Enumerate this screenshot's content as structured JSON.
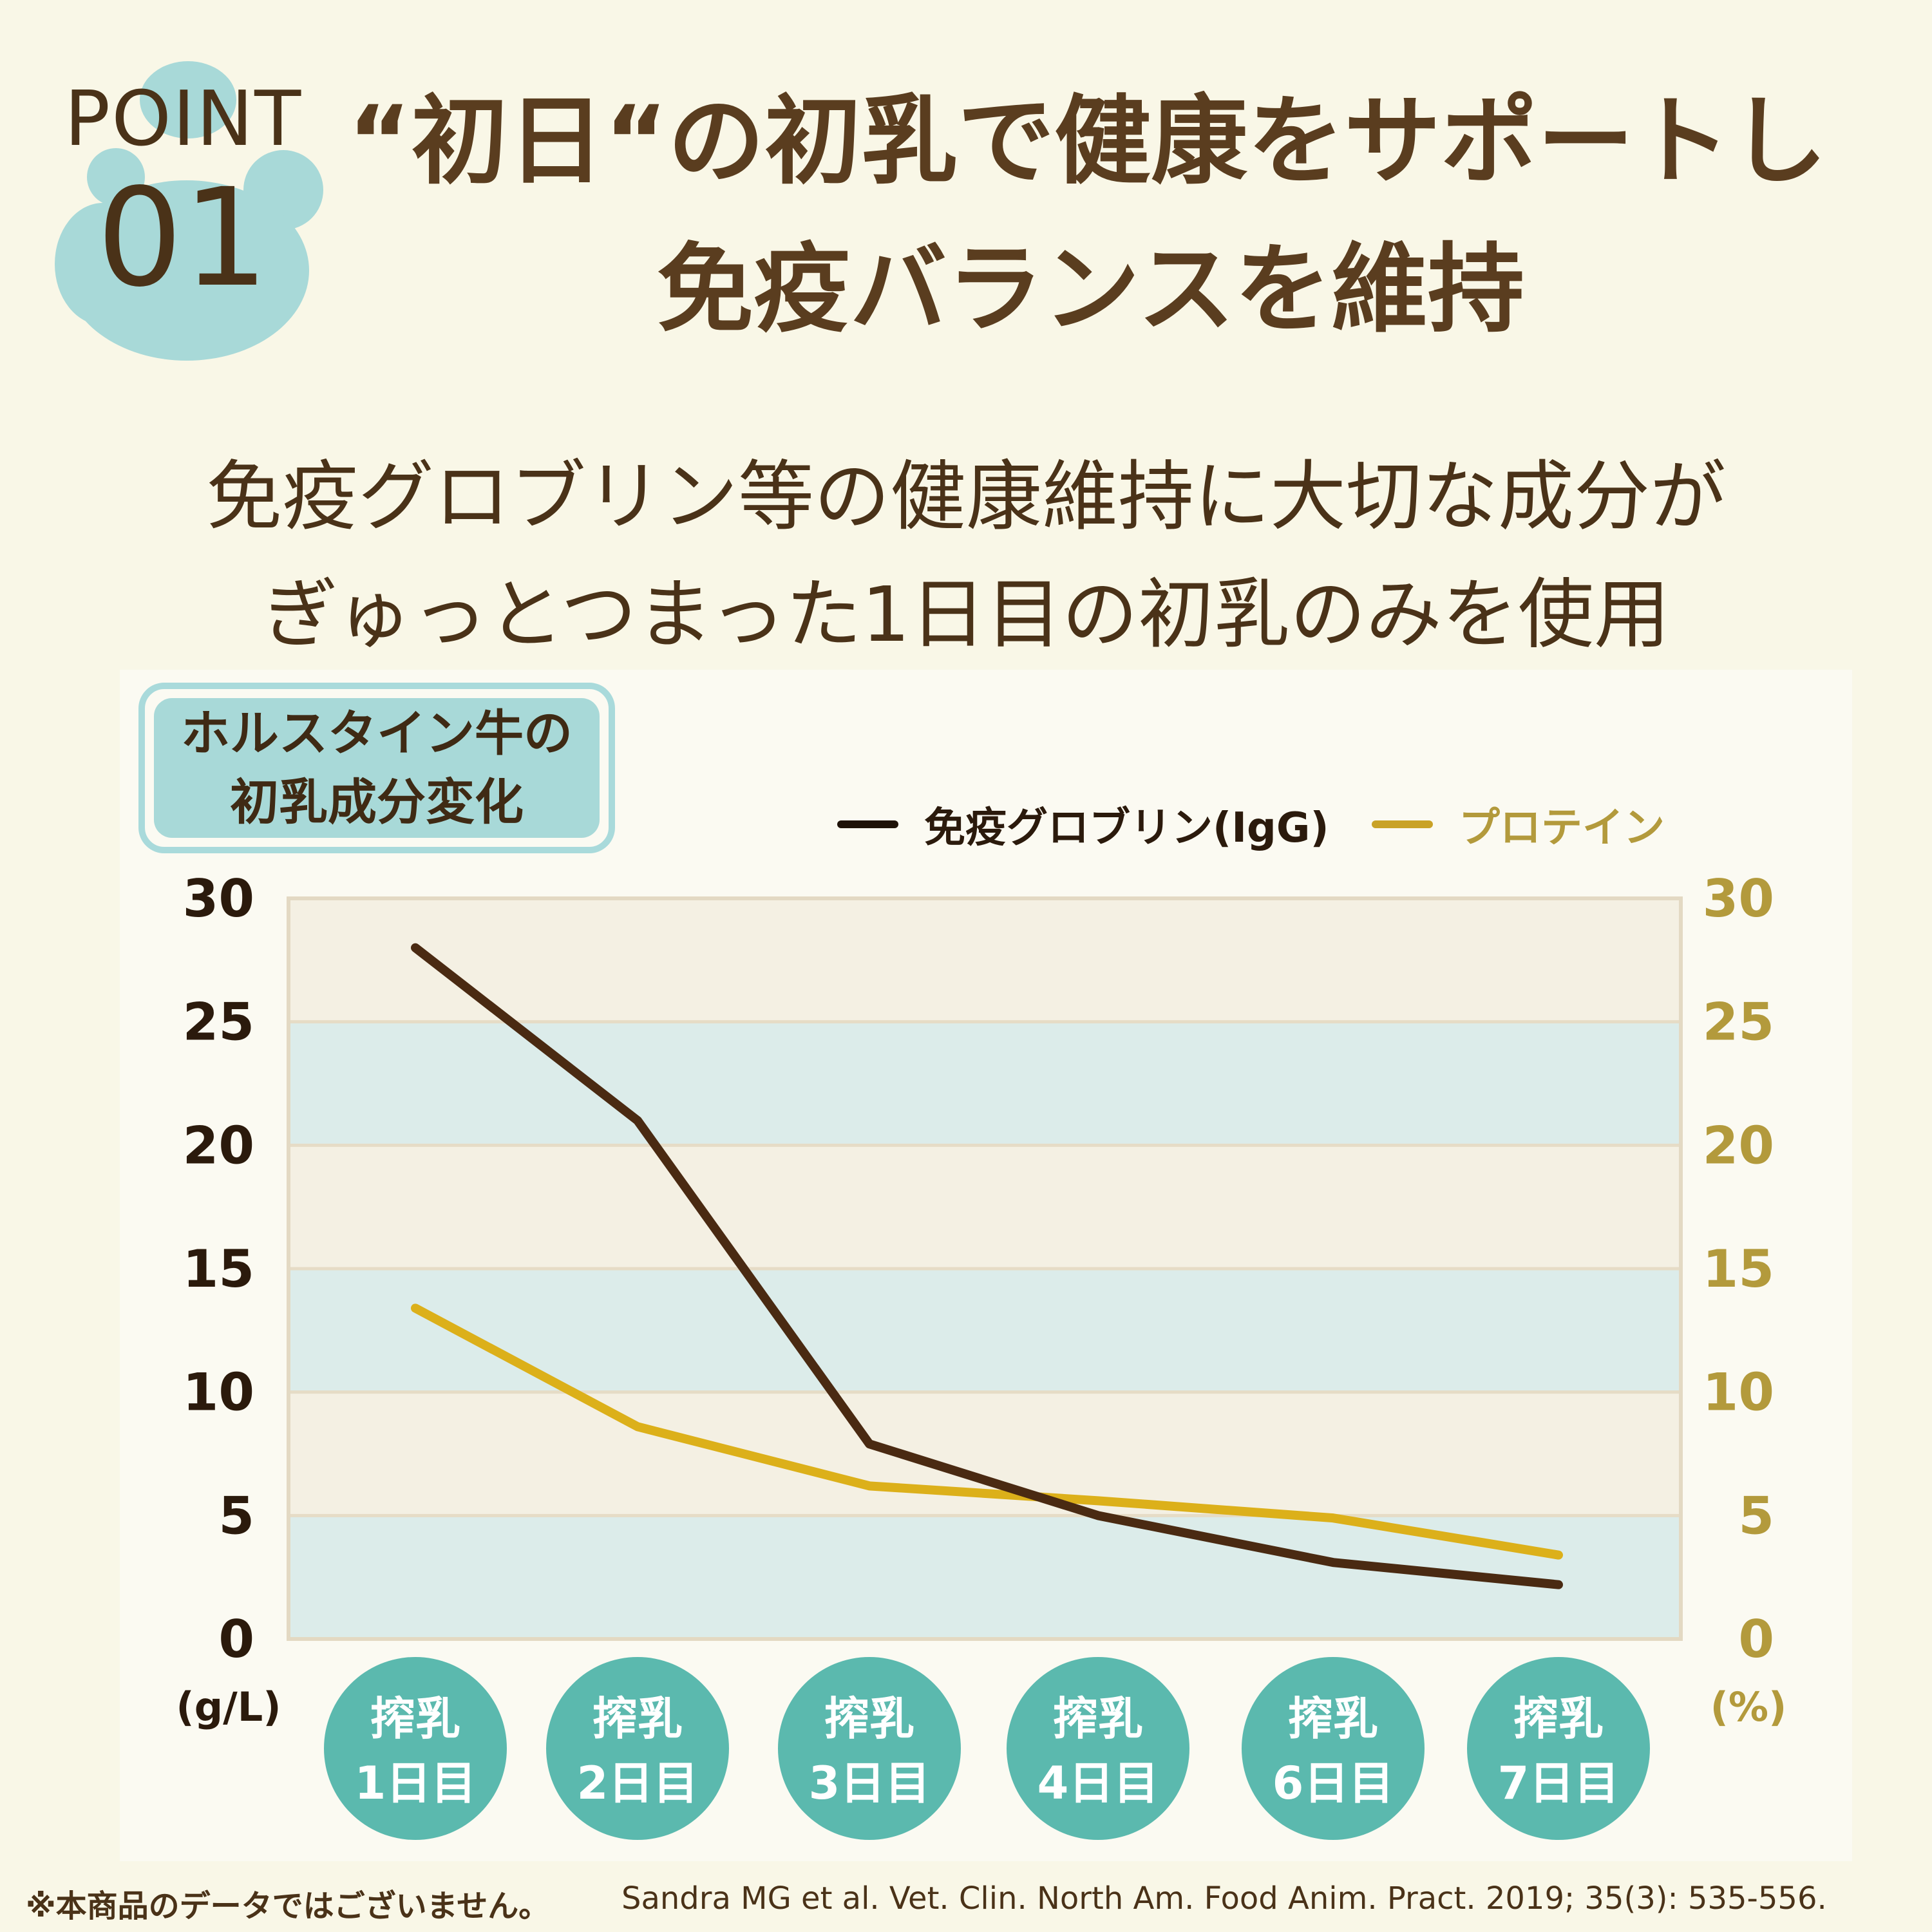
{
  "header": {
    "point_word": "POINT",
    "point_number": "01",
    "headline_line1": "“初日“の初乳で健康をサポートし",
    "headline_line2": "免疫バランスを維持"
  },
  "subtitle": {
    "line1": "免疫グロブリン等の健康維持に大切な成分が",
    "line2": "ぎゅっとつまった1日目の初乳のみを使用"
  },
  "badge": {
    "line1": "ホルスタイン牛の",
    "line2": "初乳成分変化"
  },
  "colors": {
    "background": "#f9f7e7",
    "igg_line": "#4a2a12",
    "protein_line": "#dcb01a",
    "right_axis": "#b39a3c",
    "band_blue": "#dcecea",
    "band_cream": "#f4f0e3",
    "day_circle": "#5bb9ae"
  },
  "chart_data": {
    "type": "line",
    "categories": [
      "搾乳\n1日目",
      "搾乳\n2日目",
      "搾乳\n3日目",
      "搾乳\n4日目",
      "搾乳\n6日目",
      "搾乳\n7日目"
    ],
    "category_lines": [
      [
        "搾乳",
        "1日目"
      ],
      [
        "搾乳",
        "2日目"
      ],
      [
        "搾乳",
        "3日目"
      ],
      [
        "搾乳",
        "4日目"
      ],
      [
        "搾乳",
        "6日目"
      ],
      [
        "搾乳",
        "7日目"
      ]
    ],
    "series": [
      {
        "name": "免疫グロブリン(IgG)",
        "axis": "left",
        "values": [
          28.0,
          21.0,
          7.9,
          5.0,
          3.1,
          2.2
        ]
      },
      {
        "name": "プロテイン",
        "axis": "right",
        "values": [
          13.4,
          8.6,
          6.2,
          5.6,
          4.9,
          3.4
        ]
      }
    ],
    "y_left": {
      "ticks": [
        0,
        5,
        10,
        15,
        20,
        25,
        30
      ],
      "unit": "(g/L)",
      "ylim": [
        0,
        30
      ]
    },
    "y_right": {
      "ticks": [
        0,
        5,
        10,
        15,
        20,
        25,
        30
      ],
      "unit": "(%)",
      "ylim": [
        0,
        30
      ]
    },
    "legend_position": "top-right",
    "grid": "horizontal bands"
  },
  "footer": {
    "note": "※本商品のデータではございません。",
    "citation": "Sandra MG et al. Vet. Clin. North Am. Food Anim. Pract. 2019; 35(3): 535-556."
  }
}
